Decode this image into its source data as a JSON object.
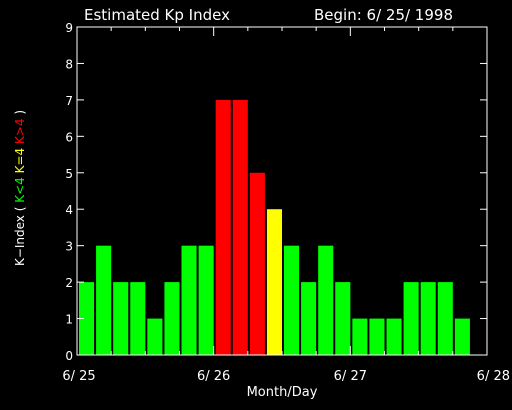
{
  "chart_data": {
    "type": "bar",
    "title": "Estimated Kp Index",
    "begin_label": "Begin: 6/ 25/ 1998",
    "xlabel": "Month/Day",
    "ylabel_prefix": "K−Index (",
    "ylabel_suffix": ")",
    "legend": [
      {
        "label": "K<4",
        "color": "#00ff00"
      },
      {
        "label": "K=4",
        "color": "#ffff00"
      },
      {
        "label": "K>4",
        "color": "#ff0000"
      }
    ],
    "x_ticks": [
      "6/ 25",
      "6/ 26",
      "6/ 27",
      "6/ 28"
    ],
    "y_ticks": [
      "0",
      "1",
      "2",
      "3",
      "4",
      "5",
      "6",
      "7",
      "8",
      "9"
    ],
    "ylim": [
      0,
      9
    ],
    "xlim_days": [
      0,
      3
    ],
    "interval_hours": 3,
    "values": [
      2,
      3,
      2,
      2,
      1,
      2,
      3,
      3,
      7,
      7,
      5,
      4,
      3,
      2,
      3,
      2,
      1,
      1,
      1,
      2,
      2,
      2,
      1
    ],
    "colors": {
      "low": "#00ff00",
      "equal": "#ffff00",
      "high": "#ff0000"
    },
    "grid": false
  }
}
